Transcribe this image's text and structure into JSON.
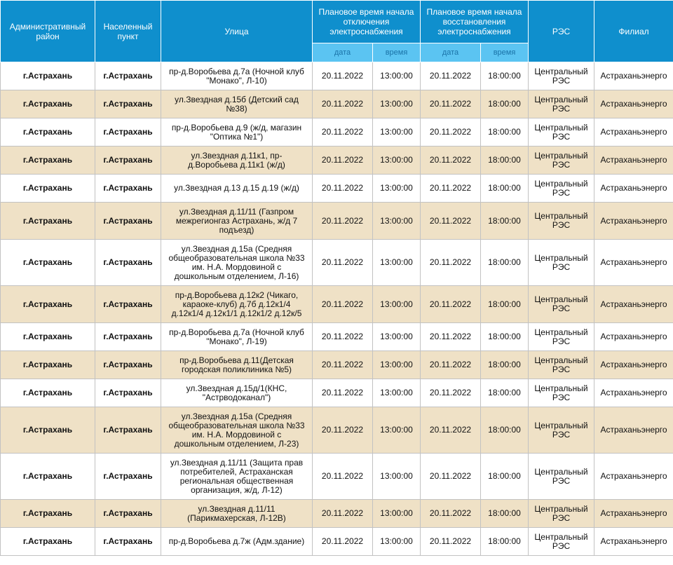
{
  "headers": {
    "district": "Административный район",
    "locality": "Населенный пункт",
    "street": "Улица",
    "off_time": "Плановое время начала отключения электроснабжения",
    "on_time": "Плановое время начала восстановления электроснабжения",
    "res": "РЭС",
    "branch": "Филиал",
    "date": "дата",
    "time": "время"
  },
  "rows": [
    {
      "district": "г.Астрахань",
      "locality": "г.Астрахань",
      "street": "пр-д.Воробьева д.7а (Ночной клуб \"Монако\", Л-10)",
      "off_date": "20.11.2022",
      "off_time": "13:00:00",
      "on_date": "20.11.2022",
      "on_time": "18:00:00",
      "res": "Центральный РЭС",
      "branch": "Астраханьэнерго"
    },
    {
      "district": "г.Астрахань",
      "locality": "г.Астрахань",
      "street": "ул.Звездная д.15б (Детский сад №38)",
      "off_date": "20.11.2022",
      "off_time": "13:00:00",
      "on_date": "20.11.2022",
      "on_time": "18:00:00",
      "res": "Центральный РЭС",
      "branch": "Астраханьэнерго"
    },
    {
      "district": "г.Астрахань",
      "locality": "г.Астрахань",
      "street": "пр-д.Воробьева д.9 (ж/д, магазин \"Оптика №1\")",
      "off_date": "20.11.2022",
      "off_time": "13:00:00",
      "on_date": "20.11.2022",
      "on_time": "18:00:00",
      "res": "Центральный РЭС",
      "branch": "Астраханьэнерго"
    },
    {
      "district": "г.Астрахань",
      "locality": "г.Астрахань",
      "street": "ул.Звездная д.11к1, пр-д.Воробьева д.11к1 (ж/д)",
      "off_date": "20.11.2022",
      "off_time": "13:00:00",
      "on_date": "20.11.2022",
      "on_time": "18:00:00",
      "res": "Центральный РЭС",
      "branch": "Астраханьэнерго"
    },
    {
      "district": "г.Астрахань",
      "locality": "г.Астрахань",
      "street": "ул.Звездная д.13 д.15 д.19 (ж/д)",
      "off_date": "20.11.2022",
      "off_time": "13:00:00",
      "on_date": "20.11.2022",
      "on_time": "18:00:00",
      "res": "Центральный РЭС",
      "branch": "Астраханьэнерго"
    },
    {
      "district": "г.Астрахань",
      "locality": "г.Астрахань",
      "street": "ул.Звездная д.11/11 (Газпром межрегионгаз Астрахань, ж/д 7 подъезд)",
      "off_date": "20.11.2022",
      "off_time": "13:00:00",
      "on_date": "20.11.2022",
      "on_time": "18:00:00",
      "res": "Центральный РЭС",
      "branch": "Астраханьэнерго"
    },
    {
      "district": "г.Астрахань",
      "locality": "г.Астрахань",
      "street": "ул.Звездная д.15а (Средняя общеобразовательная школа №33 им. Н.А. Мордовиной с дошкольным отделением, Л-16)",
      "off_date": "20.11.2022",
      "off_time": "13:00:00",
      "on_date": "20.11.2022",
      "on_time": "18:00:00",
      "res": "Центральный РЭС",
      "branch": "Астраханьэнерго"
    },
    {
      "district": "г.Астрахань",
      "locality": "г.Астрахань",
      "street": "пр-д.Воробьева д.12к2 (Чикаго, караоке-клуб) д.7б д.12к1/4 д.12к1/4 д.12к1/1 д.12к1/2 д.12к/5",
      "off_date": "20.11.2022",
      "off_time": "13:00:00",
      "on_date": "20.11.2022",
      "on_time": "18:00:00",
      "res": "Центральный РЭС",
      "branch": "Астраханьэнерго"
    },
    {
      "district": "г.Астрахань",
      "locality": "г.Астрахань",
      "street": "пр-д.Воробьева д.7а (Ночной клуб \"Монако\", Л-19)",
      "off_date": "20.11.2022",
      "off_time": "13:00:00",
      "on_date": "20.11.2022",
      "on_time": "18:00:00",
      "res": "Центральный РЭС",
      "branch": "Астраханьэнерго"
    },
    {
      "district": "г.Астрахань",
      "locality": "г.Астрахань",
      "street": "пр-д.Воробьева д.11(Детская городская поликлиника №5)",
      "off_date": "20.11.2022",
      "off_time": "13:00:00",
      "on_date": "20.11.2022",
      "on_time": "18:00:00",
      "res": "Центральный РЭС",
      "branch": "Астраханьэнерго"
    },
    {
      "district": "г.Астрахань",
      "locality": "г.Астрахань",
      "street": "ул.Звездная д.15д/1(КНС, \"Астрводоканал\")",
      "off_date": "20.11.2022",
      "off_time": "13:00:00",
      "on_date": "20.11.2022",
      "on_time": "18:00:00",
      "res": "Центральный РЭС",
      "branch": "Астраханьэнерго"
    },
    {
      "district": "г.Астрахань",
      "locality": "г.Астрахань",
      "street": "ул.Звездная д.15а (Средняя общеобразовательная школа №33 им. Н.А. Мордовиной с дошкольным отделением, Л-23)",
      "off_date": "20.11.2022",
      "off_time": "13:00:00",
      "on_date": "20.11.2022",
      "on_time": "18:00:00",
      "res": "Центральный РЭС",
      "branch": "Астраханьэнерго"
    },
    {
      "district": "г.Астрахань",
      "locality": "г.Астрахань",
      "street": "ул.Звездная д.11/11 (Защита прав потребителей, Астраханская региональная общественная организация, ж/д, Л-12)",
      "off_date": "20.11.2022",
      "off_time": "13:00:00",
      "on_date": "20.11.2022",
      "on_time": "18:00:00",
      "res": "Центральный РЭС",
      "branch": "Астраханьэнерго"
    },
    {
      "district": "г.Астрахань",
      "locality": "г.Астрахань",
      "street": "ул.Звездная д.11/11 (Парикмахерская, Л-12В)",
      "off_date": "20.11.2022",
      "off_time": "13:00:00",
      "on_date": "20.11.2022",
      "on_time": "18:00:00",
      "res": "Центральный РЭС",
      "branch": "Астраханьэнерго"
    },
    {
      "district": "г.Астрахань",
      "locality": "г.Астрахань",
      "street": "пр-д.Воробьева д.7ж (Адм.здание)",
      "off_date": "20.11.2022",
      "off_time": "13:00:00",
      "on_date": "20.11.2022",
      "on_time": "18:00:00",
      "res": "Центральный РЭС",
      "branch": "Астраханьэнерго"
    }
  ]
}
